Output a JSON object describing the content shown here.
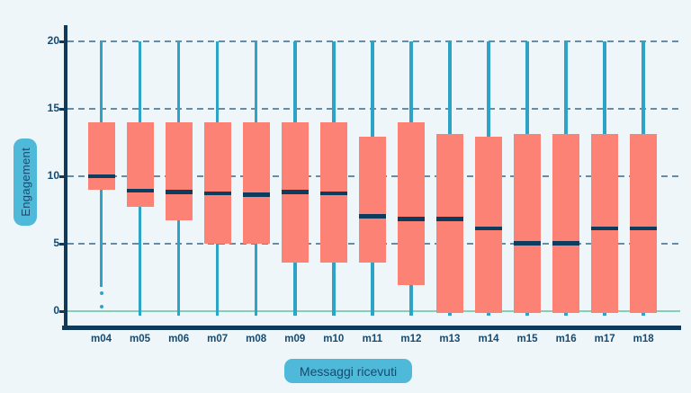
{
  "chart_data": {
    "type": "boxplot",
    "title": "",
    "xlabel": "Messaggi ricevuti",
    "ylabel": "Engagement",
    "categories": [
      "m04",
      "m05",
      "m06",
      "m07",
      "m08",
      "m09",
      "m10",
      "m11",
      "m12",
      "m13",
      "m14",
      "m15",
      "m16",
      "m17",
      "m18"
    ],
    "y_ticks": [
      0,
      5,
      10,
      15,
      20
    ],
    "ylim": [
      0,
      20
    ],
    "grid": "horizontal-dashed",
    "legend": "none",
    "boxes": [
      {
        "category": "m04",
        "whisker_low": 1.8,
        "q1": 9,
        "median": 10,
        "q3": 14,
        "whisker_high": 20,
        "outliers": [
          1.3,
          0.3
        ]
      },
      {
        "category": "m05",
        "whisker_low": 0,
        "q1": 7.7,
        "median": 8.9,
        "q3": 14,
        "whisker_high": 20,
        "outliers": []
      },
      {
        "category": "m06",
        "whisker_low": 0,
        "q1": 6.7,
        "median": 8.8,
        "q3": 14,
        "whisker_high": 20,
        "outliers": []
      },
      {
        "category": "m07",
        "whisker_low": 0,
        "q1": 5,
        "median": 8.7,
        "q3": 14,
        "whisker_high": 20,
        "outliers": []
      },
      {
        "category": "m08",
        "whisker_low": 0,
        "q1": 5,
        "median": 8.6,
        "q3": 14,
        "whisker_high": 20,
        "outliers": []
      },
      {
        "category": "m09",
        "whisker_low": 0,
        "q1": 3.6,
        "median": 8.8,
        "q3": 14,
        "whisker_high": 20,
        "outliers": []
      },
      {
        "category": "m10",
        "whisker_low": 0,
        "q1": 3.6,
        "median": 8.7,
        "q3": 14,
        "whisker_high": 20,
        "outliers": []
      },
      {
        "category": "m11",
        "whisker_low": 0,
        "q1": 3.6,
        "median": 7,
        "q3": 12.9,
        "whisker_high": 20,
        "outliers": []
      },
      {
        "category": "m12",
        "whisker_low": 0,
        "q1": 1.9,
        "median": 6.8,
        "q3": 14,
        "whisker_high": 20,
        "outliers": []
      },
      {
        "category": "m13",
        "whisker_low": 0,
        "q1": 0,
        "median": 6.8,
        "q3": 13.1,
        "whisker_high": 20,
        "outliers": []
      },
      {
        "category": "m14",
        "whisker_low": 0,
        "q1": 0,
        "median": 6.1,
        "q3": 12.9,
        "whisker_high": 20,
        "outliers": []
      },
      {
        "category": "m15",
        "whisker_low": 0,
        "q1": 0,
        "median": 5,
        "q3": 13.1,
        "whisker_high": 20,
        "outliers": []
      },
      {
        "category": "m16",
        "whisker_low": 0,
        "q1": 0,
        "median": 5,
        "q3": 13.1,
        "whisker_high": 20,
        "outliers": []
      },
      {
        "category": "m17",
        "whisker_low": 0,
        "q1": 0,
        "median": 6.1,
        "q3": 13.1,
        "whisker_high": 20,
        "outliers": []
      },
      {
        "category": "m18",
        "whisker_low": 0,
        "q1": 0,
        "median": 6.1,
        "q3": 13.1,
        "whisker_high": 20,
        "outliers": []
      }
    ],
    "colors": {
      "background": "#EFF6FA",
      "box_fill": "#FC8276",
      "median_line": "#0E3C5E",
      "whisker": "#2DA4C7",
      "outlier": "#2DA4C7",
      "gridline": "#4A7A9D",
      "axis": "#11395A",
      "zero_line": "#85CFB9",
      "badge_background": "#4FB9DA",
      "label_text": "#174A6E"
    }
  }
}
